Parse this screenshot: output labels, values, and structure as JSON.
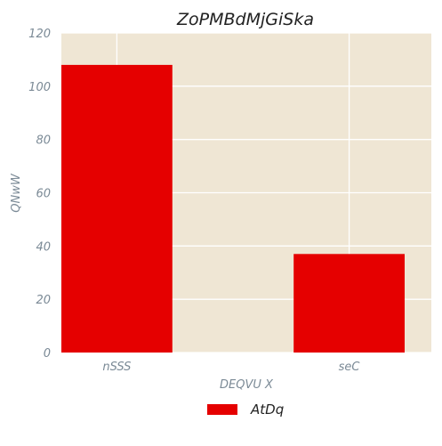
{
  "chart_data": {
    "type": "bar",
    "title": "ZoPMBdMjGiSka",
    "xlabel": "DEQVU X",
    "ylabel": "QNwW",
    "categories": [
      "nSSS",
      "seC"
    ],
    "series": [
      {
        "name": "AtDq",
        "values": [
          108,
          37
        ]
      }
    ],
    "ylim": [
      0,
      120
    ],
    "yticks": [
      0,
      20,
      40,
      60,
      80,
      100,
      120
    ],
    "grid": true,
    "legend_position": "bottom-center",
    "colors": {
      "bar": "#e50000",
      "plot_bg": "#efe6d4",
      "grid": "#ffffff",
      "tick_text": "#7b8a96",
      "title_text": "#222222"
    }
  }
}
